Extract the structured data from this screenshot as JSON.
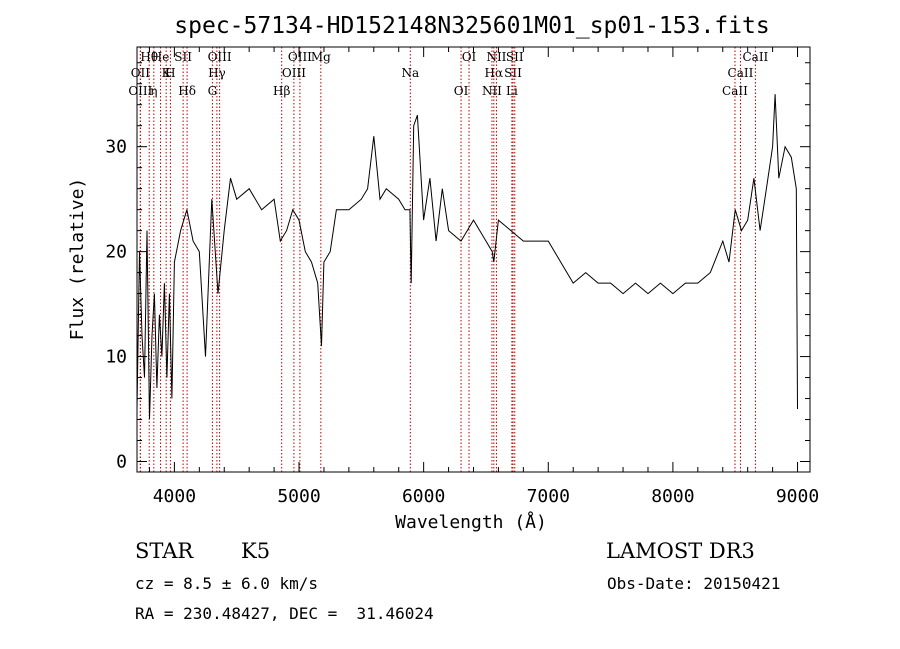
{
  "chart_data": {
    "type": "line",
    "title": "spec-57134-HD152148N325601M01_sp01-153.fits",
    "xlabel": "Wavelength (Å)",
    "ylabel": "Flux (relative)",
    "xlim": [
      3700,
      9100
    ],
    "ylim": [
      -1,
      39.5
    ],
    "xticks": [
      4000,
      5000,
      6000,
      7000,
      8000,
      9000
    ],
    "yticks": [
      0,
      10,
      20,
      30
    ],
    "series": [
      {
        "name": "flux",
        "x": [
          3700,
          3720,
          3740,
          3760,
          3780,
          3800,
          3820,
          3840,
          3860,
          3880,
          3900,
          3920,
          3940,
          3960,
          3980,
          4000,
          4050,
          4100,
          4150,
          4200,
          4250,
          4300,
          4350,
          4400,
          4450,
          4500,
          4600,
          4700,
          4800,
          4850,
          4900,
          4950,
          5000,
          5050,
          5100,
          5150,
          5180,
          5200,
          5250,
          5300,
          5400,
          5500,
          5550,
          5600,
          5650,
          5700,
          5800,
          5850,
          5890,
          5900,
          5920,
          5950,
          6000,
          6050,
          6100,
          6150,
          6200,
          6300,
          6400,
          6500,
          6550,
          6563,
          6600,
          6700,
          6800,
          7000,
          7100,
          7200,
          7300,
          7400,
          7500,
          7600,
          7700,
          7800,
          7900,
          8000,
          8100,
          8200,
          8300,
          8400,
          8450,
          8500,
          8550,
          8600,
          8650,
          8700,
          8750,
          8800,
          8820,
          8850,
          8900,
          8950,
          8990,
          9000
        ],
        "y": [
          5,
          20,
          12,
          8,
          22,
          4,
          12,
          16,
          7,
          14,
          10,
          17,
          8,
          16,
          6,
          19,
          22,
          24,
          21,
          20,
          10,
          25,
          16,
          22,
          27,
          25,
          26,
          24,
          25,
          21,
          22,
          24,
          23,
          20,
          19,
          17,
          11,
          19,
          20,
          24,
          24,
          25,
          26,
          31,
          25,
          26,
          25,
          24,
          24,
          17,
          32,
          33,
          23,
          27,
          21,
          26,
          22,
          21,
          23,
          21,
          20,
          19,
          23,
          22,
          21,
          21,
          19,
          17,
          18,
          17,
          17,
          16,
          17,
          16,
          17,
          16,
          17,
          17,
          18,
          21,
          19,
          24,
          22,
          23,
          27,
          22,
          26,
          30,
          35,
          27,
          30,
          29,
          26,
          5
        ]
      }
    ],
    "line_markers": [
      {
        "label": "Hθ",
        "x": 3798
      },
      {
        "label": "OII",
        "x": 3727
      },
      {
        "label": "OIII",
        "x": 3727
      },
      {
        "label": "He",
        "x": 3889
      },
      {
        "label": "K",
        "x": 3934
      },
      {
        "label": "η",
        "x": 3835
      },
      {
        "label": "SII",
        "x": 4070
      },
      {
        "label": "H",
        "x": 3968
      },
      {
        "label": "Hδ",
        "x": 4102
      },
      {
        "label": "OIII",
        "x": 4363
      },
      {
        "label": "Hγ",
        "x": 4341
      },
      {
        "label": "G",
        "x": 4305
      },
      {
        "label": "OIII",
        "x": 5007
      },
      {
        "label": "OIII",
        "x": 4959
      },
      {
        "label": "Hβ",
        "x": 4861
      },
      {
        "label": "Mg",
        "x": 5175
      },
      {
        "label": "Na",
        "x": 5893
      },
      {
        "label": "OI",
        "x": 6300
      },
      {
        "label": "OI",
        "x": 6364
      },
      {
        "label": "Hα",
        "x": 6563
      },
      {
        "label": "NII",
        "x": 6548
      },
      {
        "label": "NII",
        "x": 6584
      },
      {
        "label": "SII",
        "x": 6717
      },
      {
        "label": "Li",
        "x": 6708
      },
      {
        "label": "SII",
        "x": 6731
      },
      {
        "label": "CaII",
        "x": 8542
      },
      {
        "label": "CaII",
        "x": 8498
      },
      {
        "label": "CaII",
        "x": 8662
      }
    ]
  },
  "info": {
    "class": "STAR",
    "subclass": "K5",
    "survey": "LAMOST DR3",
    "cz": "cz = 8.5 ± 6.0 km/s",
    "obs_date": "Obs-Date: 20150421",
    "radec": "RA = 230.48427, DEC =  31.46024"
  }
}
